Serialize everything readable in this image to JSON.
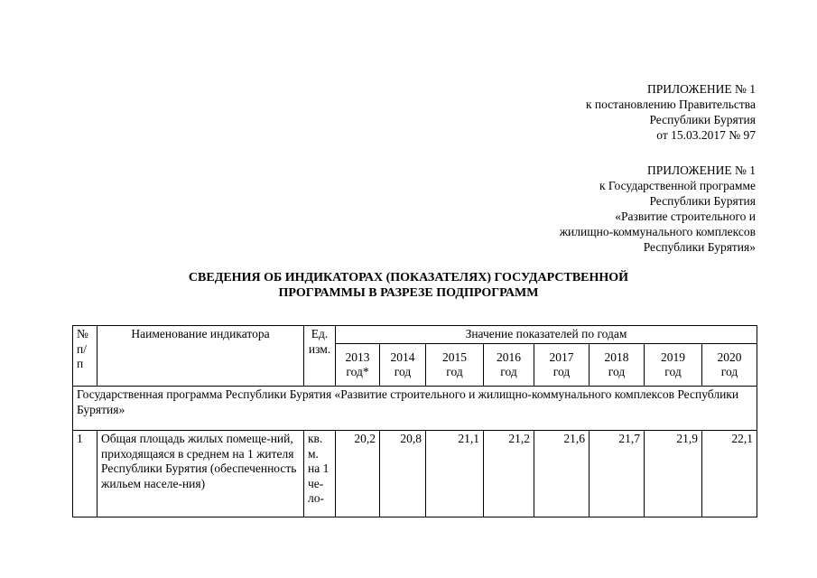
{
  "appendix1": {
    "lines": [
      "ПРИЛОЖЕНИЕ № 1",
      "к постановлению Правительства",
      "Республики Бурятия",
      "от 15.03.2017 № 97"
    ]
  },
  "appendix2": {
    "lines": [
      "ПРИЛОЖЕНИЕ № 1",
      "к Государственной программе",
      "Республики Бурятия",
      "«Развитие строительного и",
      "жилищно-коммунального комплексов",
      "Республики Бурятия»"
    ]
  },
  "title": {
    "lines": [
      "СВЕДЕНИЯ ОБ ИНДИКАТОРАХ (ПОКАЗАТЕЛЯХ) ГОСУДАРСТВЕННОЙ",
      "ПРОГРАММЫ В РАЗРЕЗЕ ПОДПРОГРАММ"
    ]
  },
  "table": {
    "headers": {
      "num": "№ п/п",
      "name": "Наименование индикатора",
      "unit": "Ед. изм.",
      "values": "Значение показателей по годам"
    },
    "years": [
      [
        "2013",
        "год*"
      ],
      [
        "2014",
        "год"
      ],
      [
        "2015",
        "год"
      ],
      [
        "2016",
        "год"
      ],
      [
        "2017",
        "год"
      ],
      [
        "2018",
        "год"
      ],
      [
        "2019",
        "год"
      ],
      [
        "2020",
        "год"
      ]
    ],
    "program_row": "Государственная программа Республики Бурятия «Развитие строительного и жилищно-коммунального комплексов Республики Бурятия»",
    "rows": [
      {
        "num": "1",
        "name": "Общая площадь жилых помеще-ний, приходящаяся в среднем на 1 жителя Республики Бурятия (обеспеченность жильем населе-ния)",
        "unit": "кв. м. на 1 че-ло-",
        "values": [
          "20,2",
          "20,8",
          "21,1",
          "21,2",
          "21,6",
          "21,7",
          "21,9",
          "22,1"
        ]
      }
    ]
  }
}
